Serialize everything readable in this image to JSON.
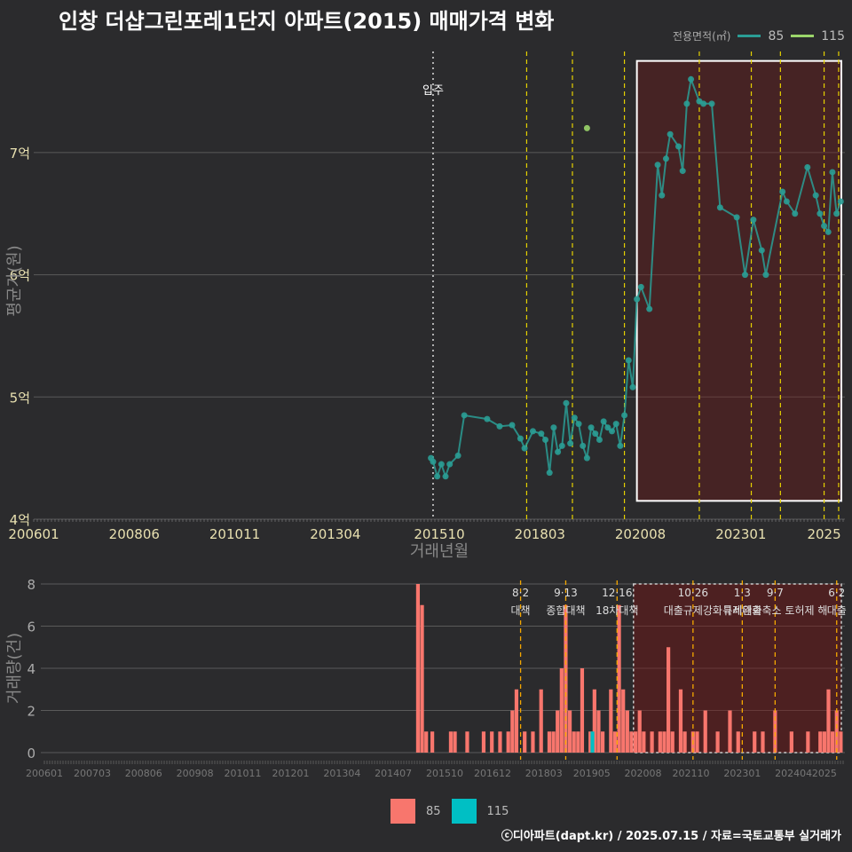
{
  "title": "인창 더샵그린포레1단지 아파트(2015) 매매가격 변화",
  "legend": {
    "title": "전용면적(㎡)",
    "items": [
      {
        "label": "85",
        "color": "#2a9d95"
      },
      {
        "label": "115",
        "color": "#9bd56a"
      }
    ]
  },
  "footer": "ⓒ디아파트(dapt.kr) / 2025.07.15 / 자료=국토교통부 실거래가",
  "bar_legend": [
    {
      "label": "85",
      "color": "#f8766d"
    },
    {
      "label": "115",
      "color": "#00bfc4"
    }
  ],
  "chart_data": [
    {
      "type": "line",
      "title": "인창 더샵그린포레1단지 아파트(2015) 매매가격 변화",
      "xlabel": "거래년월",
      "ylabel": "평균가(원)",
      "xlim": [
        2006.0,
        2025.5
      ],
      "ylim": [
        4.0,
        7.9
      ],
      "ytick_values": [
        4,
        5,
        6,
        7
      ],
      "ytick_labels": [
        "4억",
        "5억",
        "6억",
        "7억"
      ],
      "xtick_values": [
        2006.0,
        2008.417,
        2010.833,
        2013.25,
        2015.75,
        2018.167,
        2020.583,
        2023.0,
        2025.0
      ],
      "xtick_labels": [
        "200601",
        "200806",
        "201011",
        "201304",
        "201510",
        "201803",
        "202008",
        "202301",
        "2025"
      ],
      "annotations": [
        {
          "x": 2015.6,
          "label": "입주",
          "color": "#dddddd",
          "style": "dotted"
        }
      ],
      "policy_lines": [
        2017.85,
        2018.95,
        2020.2,
        2022.0,
        2023.25,
        2023.95,
        2025.0,
        2025.35
      ],
      "highlight_range": [
        2020.5,
        2025.5
      ],
      "highlight_ylim": [
        4.15,
        7.75
      ],
      "series": [
        {
          "name": "85",
          "color": "#2a9d95",
          "x": [
            2015.55,
            2015.6,
            2015.7,
            2015.8,
            2015.9,
            2016.0,
            2016.2,
            2016.35,
            2016.9,
            2017.2,
            2017.5,
            2017.7,
            2017.8,
            2018.0,
            2018.2,
            2018.3,
            2018.4,
            2018.5,
            2018.6,
            2018.7,
            2018.8,
            2018.9,
            2019.0,
            2019.1,
            2019.2,
            2019.3,
            2019.4,
            2019.5,
            2019.6,
            2019.7,
            2019.8,
            2019.9,
            2020.0,
            2020.1,
            2020.2,
            2020.3,
            2020.4,
            2020.5,
            2020.6,
            2020.8,
            2021.0,
            2021.1,
            2021.2,
            2021.3,
            2021.5,
            2021.6,
            2021.7,
            2021.8,
            2022.0,
            2022.1,
            2022.3,
            2022.5,
            2022.9,
            2023.1,
            2023.3,
            2023.5,
            2023.6,
            2024.0,
            2024.1,
            2024.3,
            2024.6,
            2024.8,
            2024.9,
            2025.0,
            2025.1,
            2025.2,
            2025.3,
            2025.4
          ],
          "y": [
            4.5,
            4.47,
            4.35,
            4.45,
            4.35,
            4.45,
            4.52,
            4.85,
            4.82,
            4.76,
            4.77,
            4.66,
            4.58,
            4.72,
            4.7,
            4.65,
            4.38,
            4.75,
            4.55,
            4.6,
            4.95,
            4.62,
            4.83,
            4.78,
            4.6,
            4.5,
            4.75,
            4.7,
            4.65,
            4.8,
            4.75,
            4.72,
            4.78,
            4.6,
            4.85,
            5.3,
            5.08,
            5.8,
            5.9,
            5.72,
            6.9,
            6.65,
            6.95,
            7.15,
            7.05,
            6.85,
            7.4,
            7.6,
            7.42,
            7.4,
            7.4,
            6.55,
            6.47,
            6.0,
            6.45,
            6.2,
            6.0,
            6.68,
            6.6,
            6.5,
            6.88,
            6.65,
            6.5,
            6.4,
            6.35,
            6.84,
            6.5,
            6.6
          ]
        },
        {
          "name": "115",
          "color": "#9bd56a",
          "x": [
            2019.3
          ],
          "y": [
            7.2
          ]
        }
      ]
    },
    {
      "type": "bar",
      "xlabel": "",
      "ylabel": "거래량(건)",
      "ylim": [
        0,
        8
      ],
      "ytick_values": [
        0,
        2,
        4,
        6,
        8
      ],
      "ytick_labels": [
        "0",
        "2",
        "4",
        "6",
        "8"
      ],
      "xlim": [
        2006.0,
        2025.5
      ],
      "xtick_values": [
        2006.0,
        2007.167,
        2008.417,
        2009.667,
        2010.833,
        2012.0,
        2013.25,
        2014.5,
        2015.75,
        2016.917,
        2018.167,
        2019.333,
        2020.583,
        2021.75,
        2023.0,
        2024.25,
        2025.0
      ],
      "xtick_labels": [
        "200601",
        "200703",
        "200806",
        "200908",
        "201011",
        "201201",
        "201304",
        "201407",
        "201510",
        "201612",
        "201803",
        "201905",
        "202008",
        "202110",
        "202301",
        "202404",
        "2025"
      ],
      "policy_events": [
        {
          "x": 2017.6,
          "date": "8·2",
          "label": "대책"
        },
        {
          "x": 2018.7,
          "date": "9·13",
          "label": "종합대책"
        },
        {
          "x": 2019.95,
          "date": "12·16",
          "label": "18차대책"
        },
        {
          "x": 2021.8,
          "date": "10·26",
          "label": "대출규제강화"
        },
        {
          "x": 2023.0,
          "date": "1·3",
          "label": "규제완화"
        },
        {
          "x": 2023.8,
          "date": "9·7",
          "label": "특례대출축소 토허제 해"
        },
        {
          "x": 2025.3,
          "date": "6·2",
          "label": "대출"
        }
      ],
      "highlight_range": [
        2020.35,
        2025.5
      ],
      "series": [
        {
          "name": "85",
          "color": "#f8766d",
          "x": [
            2015.1,
            2015.2,
            2015.3,
            2015.45,
            2015.9,
            2016.0,
            2016.3,
            2016.7,
            2016.9,
            2017.1,
            2017.3,
            2017.4,
            2017.5,
            2017.7,
            2017.9,
            2018.1,
            2018.3,
            2018.4,
            2018.5,
            2018.6,
            2018.7,
            2018.8,
            2018.9,
            2019.0,
            2019.1,
            2019.3,
            2019.4,
            2019.5,
            2019.6,
            2019.8,
            2019.9,
            2020.0,
            2020.1,
            2020.2,
            2020.3,
            2020.4,
            2020.5,
            2020.6,
            2020.8,
            2021.0,
            2021.1,
            2021.2,
            2021.3,
            2021.5,
            2021.6,
            2021.8,
            2021.9,
            2022.1,
            2022.4,
            2022.7,
            2022.9,
            2023.3,
            2023.5,
            2023.8,
            2024.2,
            2024.6,
            2024.9,
            2025.0,
            2025.1,
            2025.2,
            2025.3,
            2025.4
          ],
          "y": [
            8,
            7,
            1,
            1,
            1,
            1,
            1,
            1,
            1,
            1,
            1,
            2,
            3,
            1,
            1,
            3,
            1,
            1,
            2,
            4,
            7,
            2,
            1,
            1,
            4,
            1,
            3,
            2,
            1,
            3,
            1,
            7,
            3,
            2,
            1,
            1,
            2,
            1,
            1,
            1,
            1,
            5,
            1,
            3,
            1,
            1,
            1,
            2,
            1,
            2,
            1,
            1,
            1,
            2,
            1,
            1,
            1,
            1,
            3,
            1,
            2,
            1
          ]
        },
        {
          "name": "115",
          "color": "#00bfc4",
          "x": [
            2019.35
          ],
          "y": [
            1
          ]
        }
      ]
    }
  ]
}
